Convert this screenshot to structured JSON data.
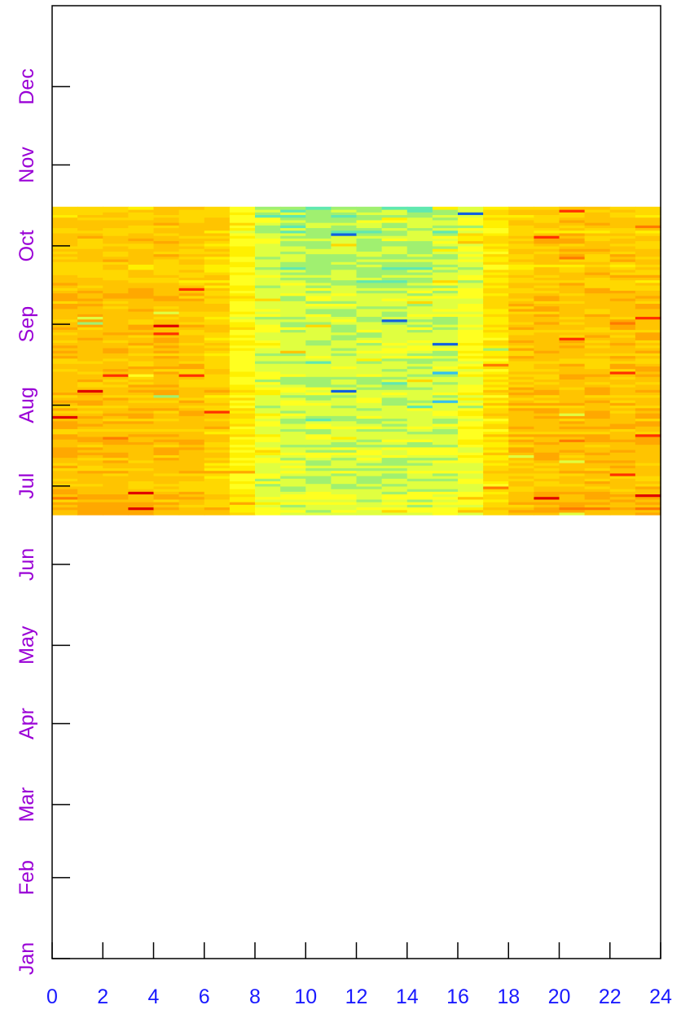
{
  "chart_data": {
    "type": "heatmap",
    "title": "",
    "xlabel": "",
    "ylabel": "",
    "x_ticks": [
      "0",
      "2",
      "4",
      "6",
      "8",
      "10",
      "12",
      "14",
      "16",
      "18",
      "20",
      "22",
      "24"
    ],
    "x_tick_values": [
      0,
      2,
      4,
      6,
      8,
      10,
      12,
      14,
      16,
      18,
      20,
      22,
      24
    ],
    "xlim": [
      0,
      24
    ],
    "y_ticks": [
      "Jan",
      "Feb",
      "Mar",
      "Apr",
      "May",
      "Jun",
      "Jul",
      "Aug",
      "Sep",
      "Oct",
      "Nov",
      "Dec"
    ],
    "y_tick_values": [
      "Jan 01",
      "Feb 01",
      "Mar 01",
      "Apr 01",
      "May 01",
      "Jun 01",
      "Jul 01",
      "Aug 01",
      "Sep 01",
      "Oct 01",
      "Nov 01",
      "Dec 01"
    ],
    "ylim": [
      "Jan 01",
      "Dec 31"
    ],
    "data_start": "Jun 20",
    "data_end": "Oct 15",
    "x_resolution": "hourly",
    "y_resolution": "daily",
    "palette": [
      "#1060e0",
      "#30c0f0",
      "#60e8b0",
      "#a0f070",
      "#e0ff40",
      "#ffff20",
      "#fff000",
      "#ffd800",
      "#ffc400",
      "#ffa800",
      "#ff7a00",
      "#ff3000",
      "#e00000",
      "#000000"
    ],
    "grid": false,
    "legend": "none",
    "colors": {
      "x_tick_label": "#1a1aff",
      "y_tick_label": "#9a00d6",
      "axis": "#000000"
    }
  }
}
